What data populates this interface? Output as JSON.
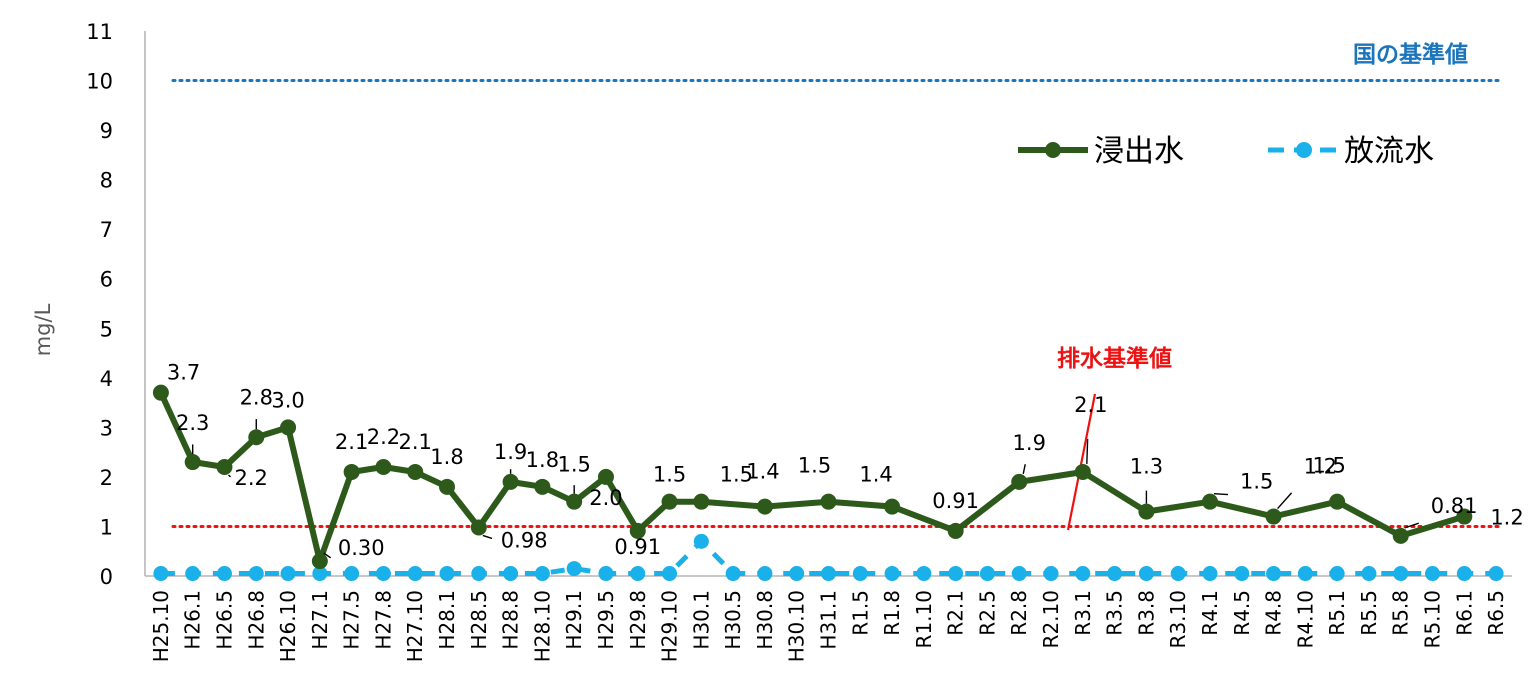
{
  "chart_data": {
    "type": "line",
    "ylabel": "mg/L",
    "ylim": [
      0,
      11
    ],
    "yticks": [
      0,
      1,
      2,
      3,
      4,
      5,
      6,
      7,
      8,
      9,
      10,
      11
    ],
    "grid": false,
    "legend_position": "top-right",
    "categories": [
      "H25.10",
      "H26.1",
      "H26.5",
      "H26.8",
      "H26.10",
      "H27.1",
      "H27.5",
      "H27.8",
      "H27.10",
      "H28.1",
      "H28.5",
      "H28.8",
      "H28.10",
      "H29.1",
      "H29.5",
      "H29.8",
      "H29.10",
      "H30.1",
      "H30.5",
      "H30.8",
      "H30.10",
      "H31.1",
      "R1.5",
      "R1.8",
      "R1.10",
      "R2.1",
      "R2.5",
      "R2.8",
      "R2.10",
      "R3.1",
      "R3.5",
      "R3.8",
      "R3.10",
      "R4.1",
      "R4.5",
      "R4.8",
      "R4.10",
      "R5.1",
      "R5.5",
      "R5.8",
      "R5.10",
      "R6.1",
      "R6.5"
    ],
    "series": [
      {
        "name": "浸出水",
        "color": "#2d5a1b",
        "style": "solid",
        "x": [
          "H25.10",
          "H26.1",
          "H26.5",
          "H26.8",
          "H26.10",
          "H27.1",
          "H27.5",
          "H27.8",
          "H27.10",
          "H28.1",
          "H28.5",
          "H28.8",
          "H28.10",
          "H29.1",
          "H29.5",
          "H29.8",
          "H29.10",
          "H30.1",
          "H30.8",
          "H31.1",
          "R1.8",
          "R2.1",
          "R2.8",
          "R3.1",
          "R3.8",
          "R4.1",
          "R4.8",
          "R5.1",
          "R5.8",
          "R6.1"
        ],
        "values": [
          3.7,
          2.3,
          2.2,
          2.8,
          3.0,
          0.3,
          2.1,
          2.2,
          2.1,
          1.8,
          0.98,
          1.9,
          1.8,
          1.5,
          2.0,
          0.91,
          1.5,
          1.5,
          1.4,
          1.5,
          1.4,
          0.91,
          1.9,
          2.1,
          1.3,
          1.5,
          1.2,
          1.5,
          0.81,
          1.2
        ]
      },
      {
        "name": "放流水",
        "color": "#1ab0ea",
        "style": "dashed",
        "x": [
          "H25.10",
          "H26.1",
          "H26.5",
          "H26.8",
          "H26.10",
          "H27.1",
          "H27.5",
          "H27.8",
          "H27.10",
          "H28.1",
          "H28.5",
          "H28.8",
          "H28.10",
          "H29.1",
          "H29.5",
          "H29.8",
          "H29.10",
          "H30.1",
          "H30.5",
          "H30.8",
          "H30.10",
          "H31.1",
          "R1.5",
          "R1.8",
          "R1.10",
          "R2.1",
          "R2.5",
          "R2.8",
          "R2.10",
          "R3.1",
          "R3.5",
          "R3.8",
          "R3.10",
          "R4.1",
          "R4.5",
          "R4.8",
          "R4.10",
          "R5.1",
          "R5.5",
          "R5.8",
          "R5.10",
          "R6.1",
          "R6.5"
        ],
        "values": [
          0.05,
          0.05,
          0.05,
          0.05,
          0.05,
          0.05,
          0.05,
          0.05,
          0.05,
          0.05,
          0.05,
          0.05,
          0.05,
          0.15,
          0.05,
          0.05,
          0.05,
          0.7,
          0.05,
          0.05,
          0.05,
          0.05,
          0.05,
          0.05,
          0.05,
          0.05,
          0.05,
          0.05,
          0.05,
          0.05,
          0.05,
          0.05,
          0.05,
          0.05,
          0.05,
          0.05,
          0.05,
          0.05,
          0.05,
          0.05,
          0.05,
          0.05,
          0.05
        ]
      }
    ],
    "data_labels": [
      "3.7",
      "2.3",
      "2.2",
      "2.8",
      "3.0",
      "0.30",
      "2.1",
      "2.2",
      "2.1",
      "1.8",
      "0.98",
      "1.9",
      "1.8",
      "1.5",
      "2.0",
      "0.91",
      "1.5",
      "1.5",
      "1.4",
      "1.5",
      "1.4",
      "0.91",
      "1.9",
      "2.1",
      "1.3",
      "1.5",
      "1.2",
      "1.5",
      "0.81",
      "1.2"
    ],
    "reference_lines": [
      {
        "label": "国の基準値",
        "value": 10,
        "color": "#1a75bc"
      },
      {
        "label": "排水基準値",
        "value": 1,
        "color": "#ee1111"
      }
    ]
  }
}
